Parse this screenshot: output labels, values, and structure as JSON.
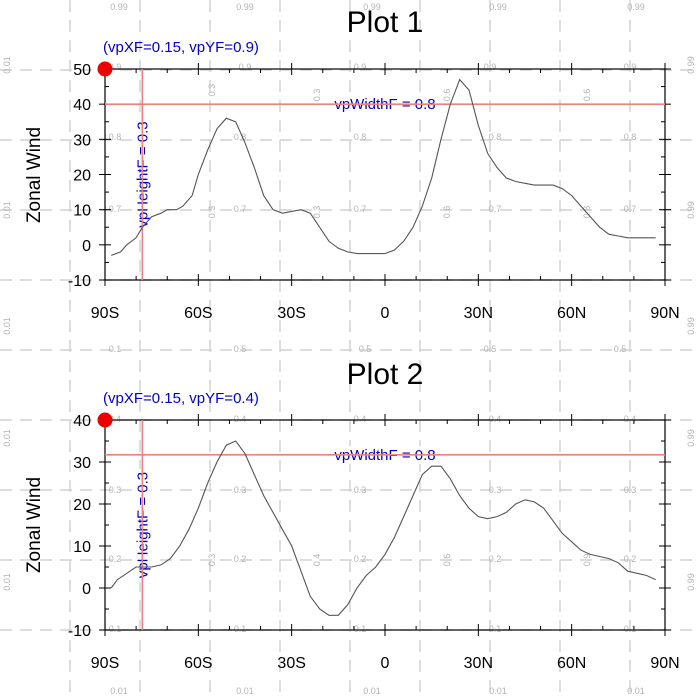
{
  "colors": {
    "curve": "#555555",
    "axes": "#000000",
    "grid": "#d0d0d0",
    "ref_lines": "#f08080",
    "marker": "#ee0000",
    "annotation": "#0000cc",
    "grid_label": "#b4b4b4"
  },
  "grid_labels": {
    "v_edge": "0.99",
    "h_edge": "0.01",
    "fractions": [
      "0.1",
      "0.2",
      "0.3",
      "0.4",
      "0.5",
      "0.6",
      "0.7",
      "0.8",
      "0.9"
    ]
  },
  "chart_data": [
    {
      "type": "line",
      "title": "Plot 1",
      "ylabel": "Zonal Wind",
      "xlabel": "",
      "xlim": [
        -90,
        90
      ],
      "ylim": [
        -10,
        50
      ],
      "xticks": [
        -90,
        -60,
        -30,
        0,
        30,
        60,
        90
      ],
      "xtick_labels": [
        "90S",
        "60S",
        "30S",
        "0",
        "30N",
        "60N",
        "90N"
      ],
      "yticks": [
        -10,
        0,
        10,
        20,
        30,
        40,
        50
      ],
      "ytick_labels": [
        "-10",
        "0",
        "10",
        "20",
        "30",
        "40",
        "50"
      ],
      "series": [
        {
          "name": "zonal wind",
          "x": [
            -88,
            -85,
            -83,
            -80,
            -78,
            -75,
            -72,
            -70,
            -67,
            -65,
            -62,
            -60,
            -57,
            -54,
            -51,
            -48,
            -45,
            -42,
            -39,
            -36,
            -33,
            -30,
            -27,
            -24,
            -21,
            -18,
            -15,
            -12,
            -9,
            -6,
            -3,
            0,
            3,
            6,
            9,
            12,
            15,
            18,
            21,
            24,
            27,
            30,
            33,
            36,
            39,
            42,
            45,
            48,
            51,
            54,
            57,
            60,
            63,
            66,
            69,
            72,
            75,
            78,
            81,
            84,
            87
          ],
          "y": [
            -3,
            -2,
            0,
            2,
            5,
            8,
            9,
            10,
            10,
            11,
            14,
            20,
            27,
            33,
            36,
            35,
            29,
            22,
            14,
            10,
            9,
            9.5,
            10,
            9,
            5,
            1,
            -1,
            -2,
            -2.5,
            -2.5,
            -2.5,
            -2.5,
            -1.5,
            1,
            5,
            11,
            19,
            30,
            40,
            47,
            44,
            34,
            26,
            22,
            19,
            18,
            17.5,
            17,
            17,
            17,
            16,
            14,
            11,
            8,
            5,
            3,
            2.5,
            2,
            2,
            2,
            2
          ]
        }
      ],
      "markers": [
        {
          "x": -90,
          "y": 50,
          "label": "(vpXF=0.15, vpYF=0.9)"
        }
      ],
      "ref_lines": [
        {
          "orientation": "horizontal",
          "value": 40,
          "label": "vpWidthF = 0.8"
        },
        {
          "orientation": "vertical",
          "value": -78,
          "label": "vpHeightF = 0.3"
        }
      ]
    },
    {
      "type": "line",
      "title": "Plot 2",
      "ylabel": "Zonal Wind",
      "xlabel": "",
      "xlim": [
        -90,
        90
      ],
      "ylim": [
        -10,
        40
      ],
      "xticks": [
        -90,
        -60,
        -30,
        0,
        30,
        60,
        90
      ],
      "xtick_labels": [
        "90S",
        "60S",
        "30S",
        "0",
        "30N",
        "60N",
        "90N"
      ],
      "yticks": [
        -10,
        0,
        10,
        20,
        30,
        40
      ],
      "ytick_labels": [
        "-10",
        "0",
        "10",
        "20",
        "30",
        "40"
      ],
      "series": [
        {
          "name": "zonal wind",
          "x": [
            -88,
            -86,
            -84,
            -82,
            -80,
            -78,
            -75,
            -72,
            -69,
            -66,
            -63,
            -60,
            -57,
            -54,
            -51,
            -48,
            -45,
            -42,
            -39,
            -36,
            -33,
            -30,
            -27,
            -24,
            -21,
            -18,
            -15,
            -12,
            -9,
            -6,
            -3,
            0,
            3,
            6,
            9,
            12,
            15,
            18,
            21,
            24,
            27,
            30,
            33,
            36,
            39,
            42,
            45,
            48,
            51,
            54,
            57,
            60,
            63,
            66,
            69,
            72,
            75,
            78,
            81,
            84,
            87
          ],
          "y": [
            0,
            2,
            3,
            4,
            5,
            5,
            5,
            5.5,
            7,
            10,
            14,
            19,
            25,
            30,
            34,
            35,
            32,
            27,
            22,
            18,
            14,
            10,
            4,
            -2,
            -5,
            -6.5,
            -6.5,
            -4,
            0,
            3,
            5,
            8,
            12,
            17,
            22,
            27,
            29,
            29,
            26,
            22,
            19,
            17,
            16.5,
            17,
            18,
            20,
            21,
            20.5,
            19,
            16,
            13,
            11,
            9,
            8,
            7.5,
            7,
            6,
            4,
            3.5,
            3,
            2
          ]
        }
      ],
      "markers": [
        {
          "x": -90,
          "y": 40,
          "label": "(vpXF=0.15, vpYF=0.4)"
        }
      ],
      "ref_lines": [
        {
          "orientation": "horizontal",
          "value": 31.7,
          "label": "vpWidthF = 0.8"
        },
        {
          "orientation": "vertical",
          "value": -78,
          "label": "vpHeightF = 0.3"
        }
      ]
    }
  ]
}
